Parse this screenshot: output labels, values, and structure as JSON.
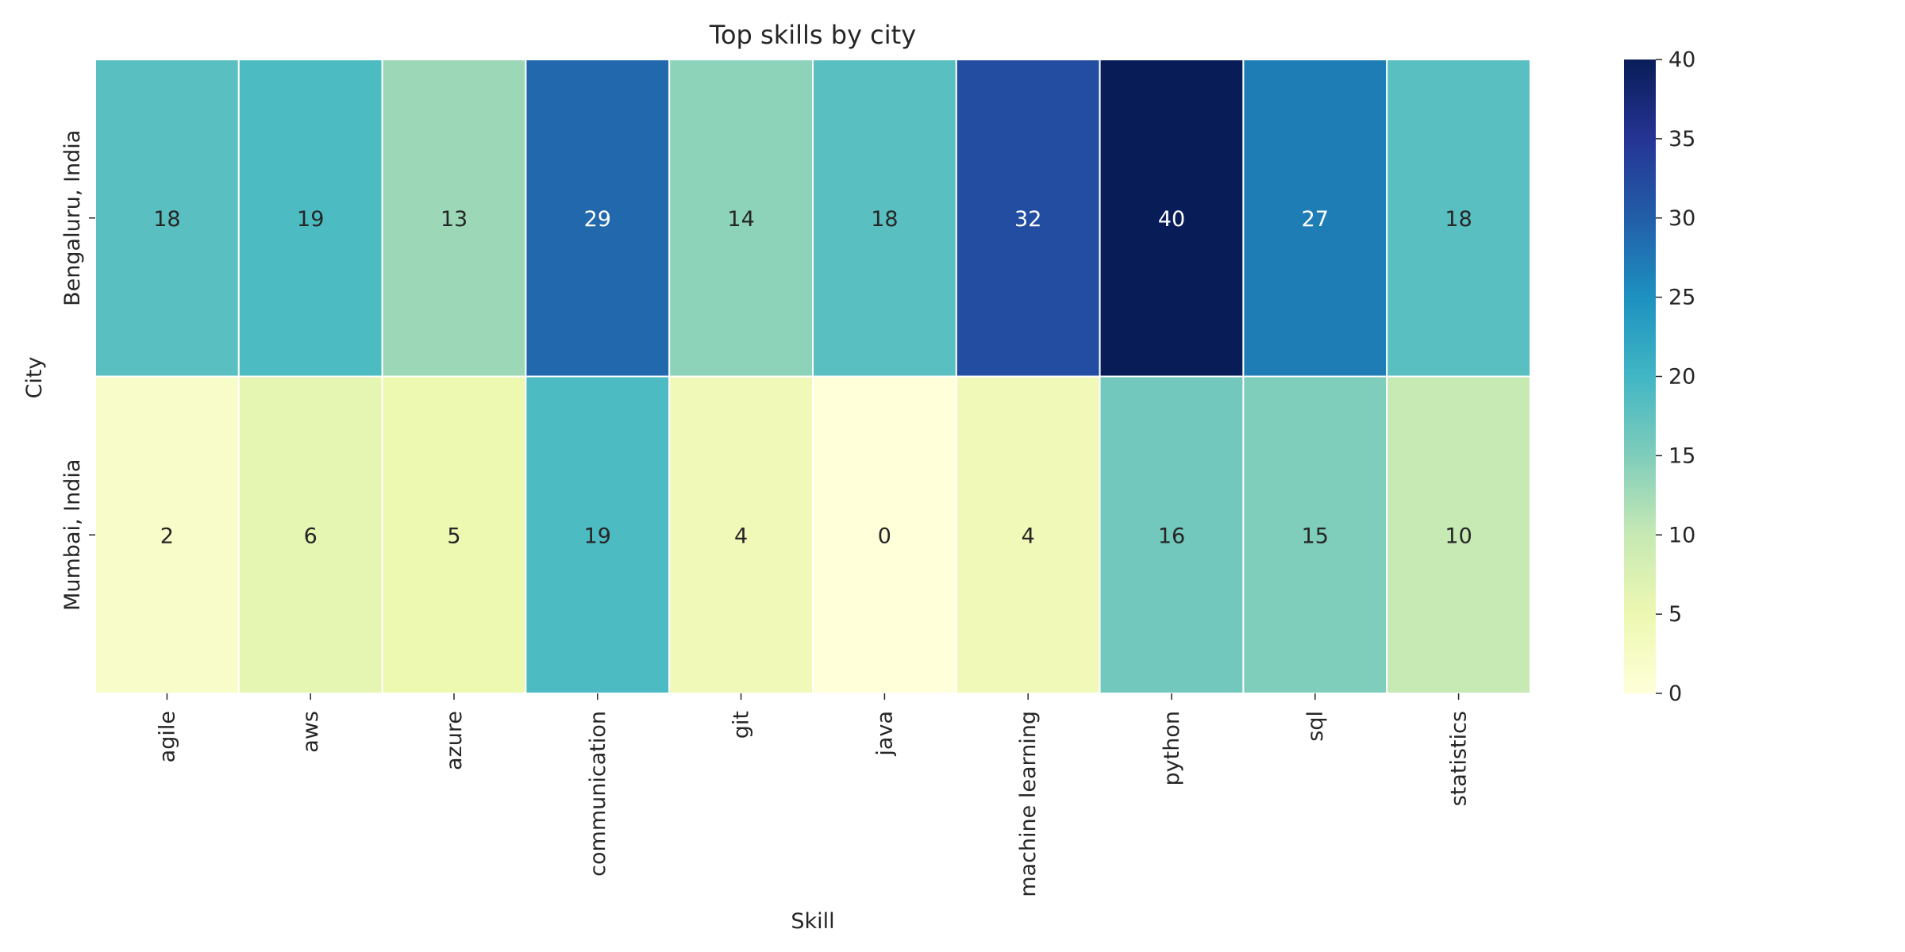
{
  "chart_data": {
    "type": "heatmap",
    "title": "Top skills by city",
    "xlabel": "Skill",
    "ylabel": "City",
    "x_categories": [
      "agile",
      "aws",
      "azure",
      "communication",
      "git",
      "java",
      "machine learning",
      "python",
      "sql",
      "statistics"
    ],
    "y_categories": [
      "Bengaluru, India",
      "Mumbai, India"
    ],
    "values": [
      [
        18,
        19,
        13,
        29,
        14,
        18,
        32,
        40,
        27,
        18
      ],
      [
        2,
        6,
        5,
        19,
        4,
        0,
        4,
        16,
        15,
        10
      ]
    ],
    "colorbar": {
      "min": 0,
      "max": 40,
      "ticks": [
        "0",
        "5",
        "10",
        "15",
        "20",
        "25",
        "30",
        "35",
        "40"
      ],
      "colormap": "YlGnBu"
    }
  }
}
